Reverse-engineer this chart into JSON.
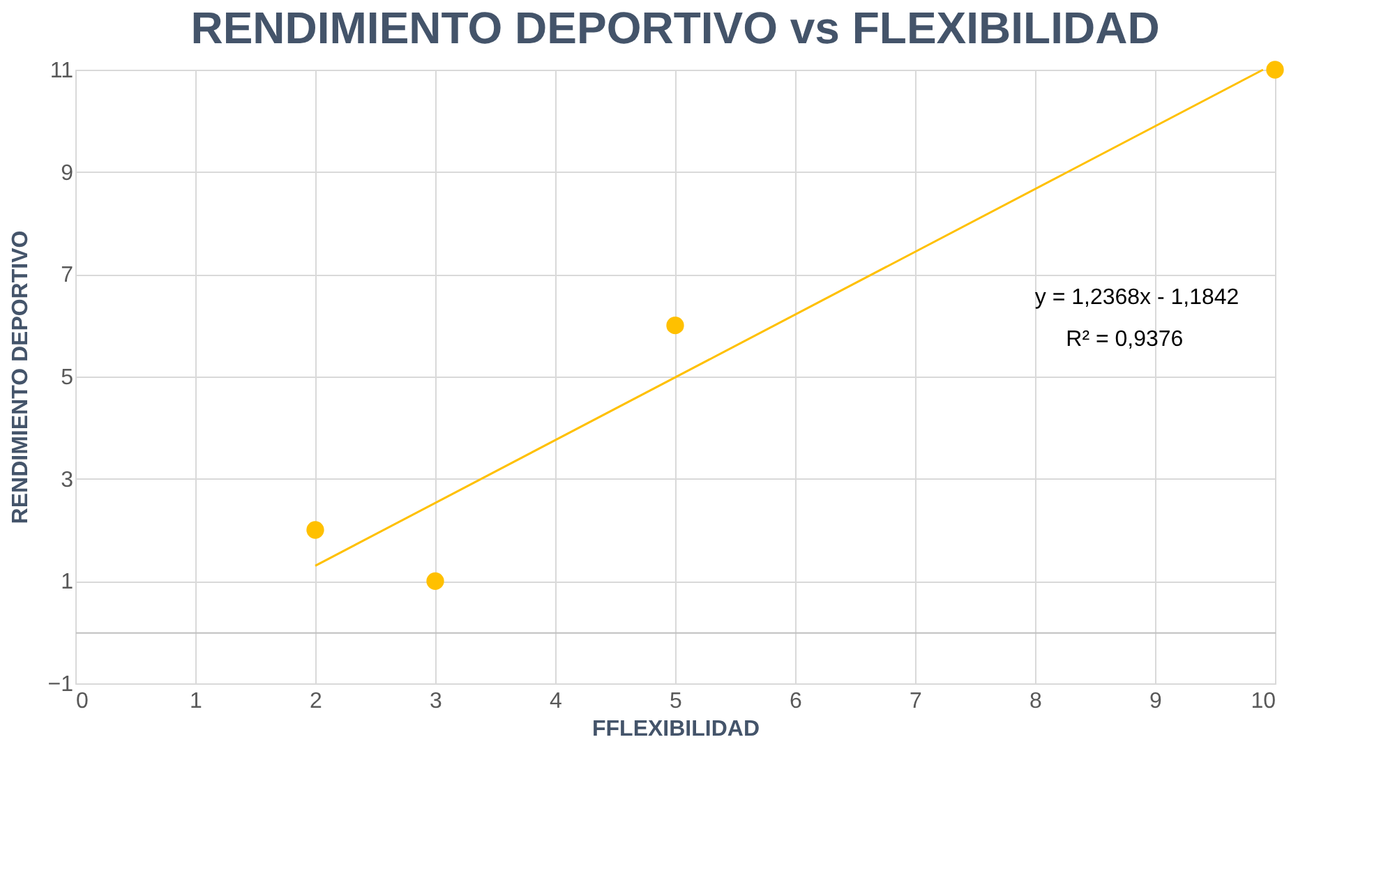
{
  "chart_data": {
    "type": "scatter",
    "title": "RENDIMIENTO DEPORTIVO vs FLEXIBILIDAD",
    "xlabel": "FFLEXIBILIDAD",
    "ylabel": "RENDIMIENTO DEPORTIVO",
    "x": [
      2,
      3,
      5,
      10
    ],
    "series": [
      {
        "color": "#ffc000",
        "values": [
          2,
          1,
          6,
          11
        ]
      },
      {
        "type": "line",
        "marker": "none",
        "color": "#ffc000",
        "x": [
          2,
          9.9
        ],
        "values": [
          1.3,
          11.0
        ]
      }
    ],
    "xlim": [
      0,
      10
    ],
    "xticks": [
      0,
      1,
      2,
      3,
      4,
      5,
      6,
      7,
      8,
      9,
      10
    ],
    "ylim": [
      -1,
      11
    ],
    "yticks": [
      -1,
      1,
      3,
      5,
      7,
      9,
      11
    ],
    "grid": true,
    "marker": "circle",
    "line_style": "solid",
    "annotations": [
      "y = 1,2368x - 1,1842",
      "R² = 0,9376"
    ]
  }
}
